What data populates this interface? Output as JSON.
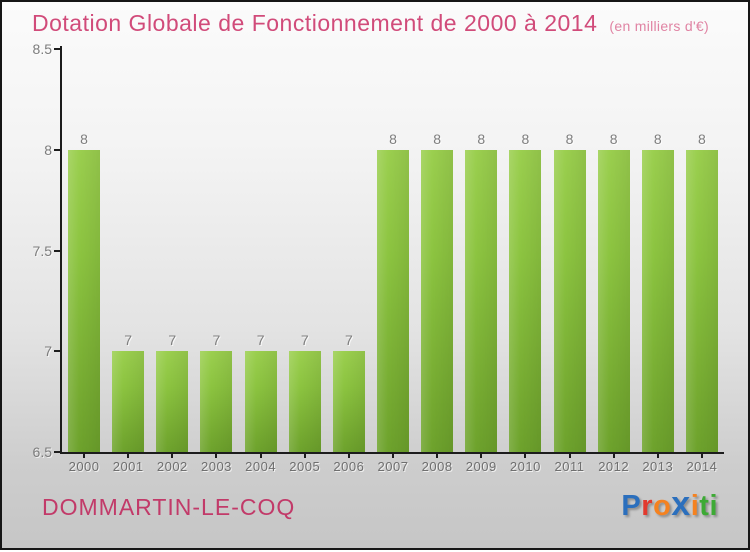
{
  "header": {
    "title": "Dotation Globale de Fonctionnement de 2000 à 2014",
    "subtitle": "(en milliers d'€)"
  },
  "footer": {
    "commune": "DOMMARTIN-LE-COQ",
    "logo_letters": [
      {
        "char": "P",
        "color": "#2b6fbd",
        "big": false
      },
      {
        "char": "r",
        "color": "#e23a2e",
        "big": false
      },
      {
        "char": "o",
        "color": "#f58220",
        "big": false
      },
      {
        "char": "x",
        "color": "#2b6fbd",
        "big": true
      },
      {
        "char": "i",
        "color": "#f58220",
        "big": false
      },
      {
        "char": "t",
        "color": "#3daa35",
        "big": false
      },
      {
        "char": "i",
        "color": "#3daa35",
        "big": false
      }
    ]
  },
  "chart_data": {
    "type": "bar",
    "title": "Dotation Globale de Fonctionnement de 2000 à 2014",
    "subtitle": "(en milliers d'€)",
    "categories": [
      "2000",
      "2001",
      "2002",
      "2003",
      "2004",
      "2005",
      "2006",
      "2007",
      "2008",
      "2009",
      "2010",
      "2011",
      "2012",
      "2013",
      "2014"
    ],
    "values": [
      8,
      7,
      7,
      7,
      7,
      7,
      7,
      8,
      8,
      8,
      8,
      8,
      8,
      8,
      8
    ],
    "xlabel": "",
    "ylabel": "",
    "ylim": [
      6.5,
      8.5
    ],
    "yticks": [
      6.5,
      7,
      7.5,
      8,
      8.5
    ],
    "grid": false,
    "legend": false,
    "value_labels_shown": true,
    "bar_color_top": "#9bcf4f",
    "bar_color_bottom": "#6da22c",
    "axis_color": "#1c1c1c",
    "label_color": "#7c7c7c"
  }
}
